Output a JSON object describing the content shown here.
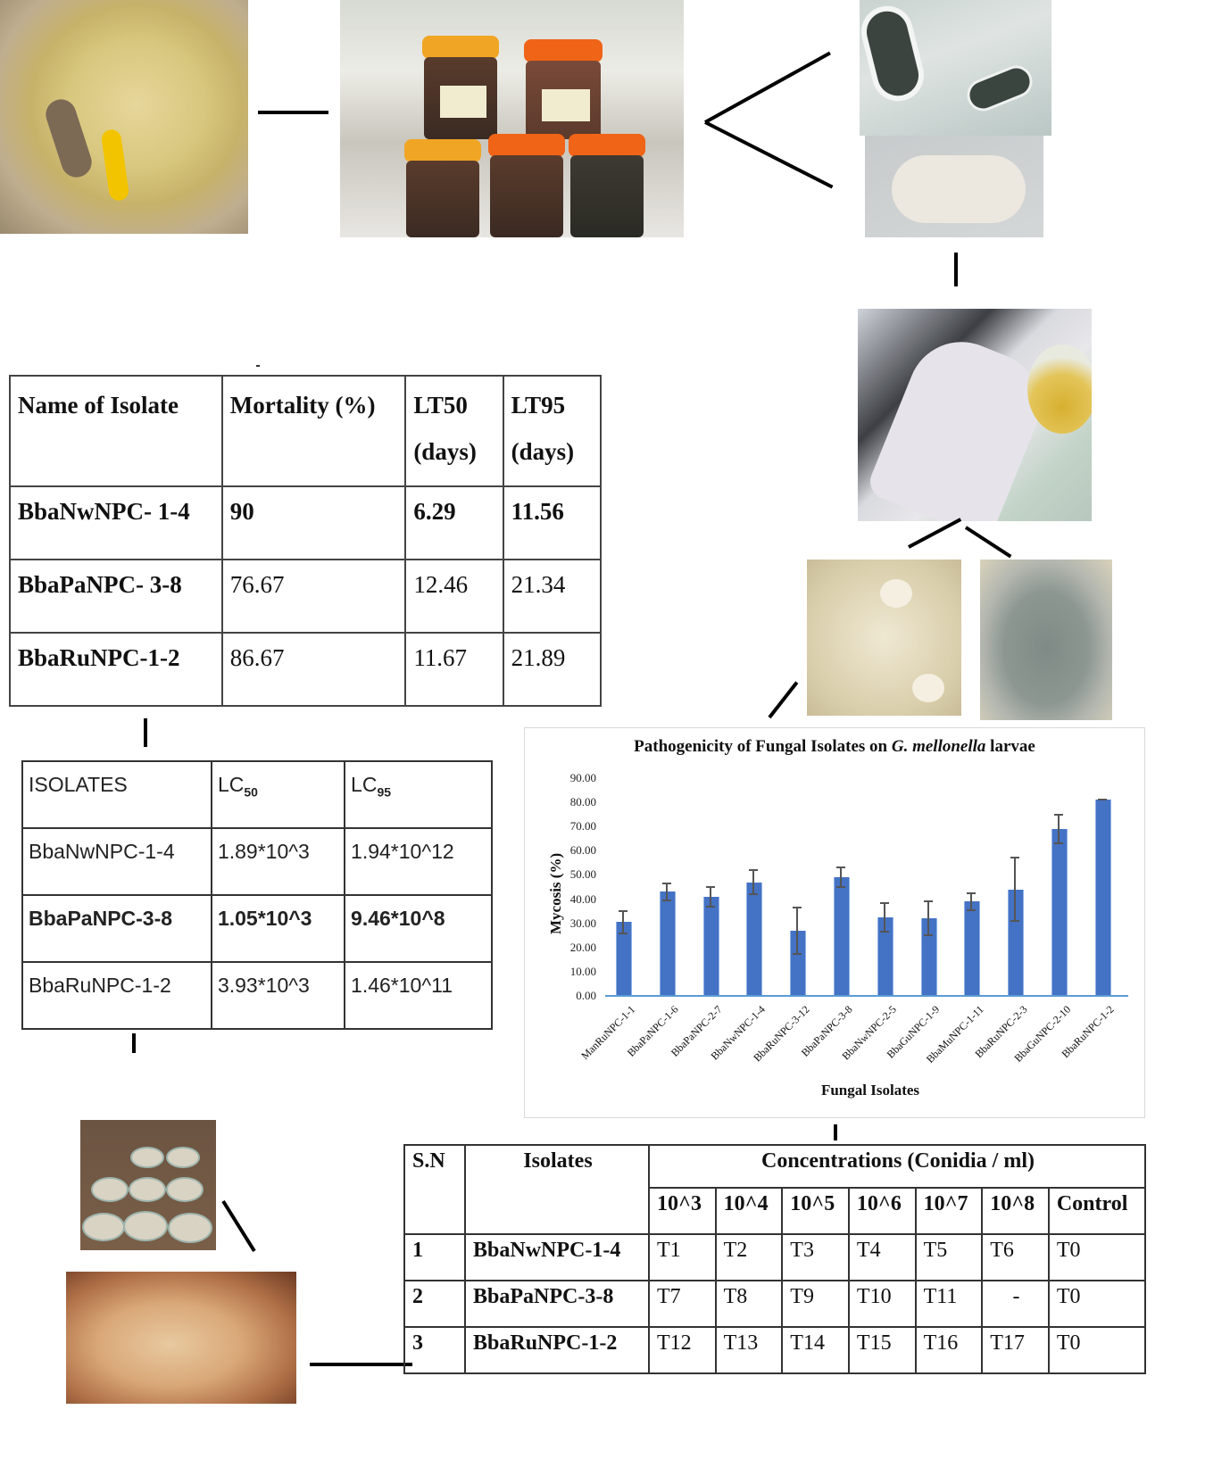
{
  "photos": {
    "larva_with_fungus": "Larva with yellow pupa on fungal growth",
    "soil_samples": "Soil sample jars",
    "mycosed_cadavers": "Mycosed cadavers",
    "fungal_covered_larva": "Fungus-covered larva",
    "isolation_lab": "Isolation in laboratory",
    "white_colonies": "White fungal colonies",
    "green_colonies": "Greenish fungal culture",
    "mass_culture_plates": "Mass culture plates",
    "maggot_bioassay": "Maggot bioassay"
  },
  "table_lt": {
    "headers": [
      "Name of Isolate",
      "Mortality (%)",
      "LT50",
      "LT95"
    ],
    "subheaders": [
      "",
      "",
      "(days)",
      "(days)"
    ],
    "rows": [
      {
        "isolate": "BbaNwNPC- 1-4",
        "mortality": "90",
        "lt50": "6.29",
        "lt95": "11.56",
        "bold": true
      },
      {
        "isolate": "BbaPaNPC- 3-8",
        "mortality": "76.67",
        "lt50": "12.46",
        "lt95": "21.34",
        "bold": false
      },
      {
        "isolate": "BbaRuNPC-1-2",
        "mortality": "86.67",
        "lt50": "11.67",
        "lt95": "21.89",
        "bold": false
      }
    ]
  },
  "table_lc": {
    "headers": [
      "ISOLATES",
      "LC",
      "LC"
    ],
    "header_subs": [
      "",
      "50",
      "95"
    ],
    "rows": [
      {
        "isolate": "BbaNwNPC-1-4",
        "lc50": "1.89*10^3",
        "lc95": "1.94*10^12",
        "bold": false
      },
      {
        "isolate": "BbaPaNPC-3-8",
        "lc50": "1.05*10^3",
        "lc95": "9.46*10^8",
        "bold": true
      },
      {
        "isolate": "BbaRuNPC-1-2",
        "lc50": "3.93*10^3",
        "lc95": "1.46*10^11",
        "bold": false
      }
    ]
  },
  "table_treat": {
    "headers": {
      "sn": "S.N",
      "isolates": "Isolates",
      "conc": "Concentrations (Conidia / ml)"
    },
    "conc_cols": [
      "10^3",
      "10^4",
      "10^5",
      "10^6",
      "10^7",
      "10^8",
      "Control"
    ],
    "rows": [
      {
        "sn": "1",
        "isolate": "BbaNwNPC-1-4",
        "cells": [
          "T1",
          "T2",
          "T3",
          "T4",
          "T5",
          "T6",
          "T0"
        ]
      },
      {
        "sn": "2",
        "isolate": "BbaPaNPC-3-8",
        "cells": [
          "T7",
          "T8",
          "T9",
          "T10",
          "T11",
          "-",
          "T0"
        ]
      },
      {
        "sn": "3",
        "isolate": "BbaRuNPC-1-2",
        "cells": [
          "T12",
          "T13",
          "T14",
          "T15",
          "T16",
          "T17",
          "T0"
        ]
      }
    ]
  },
  "chart": {
    "title_pre": "Pathogenicity of Fungal Isolates on ",
    "title_italic": "G. mellonella",
    "title_post": " larvae",
    "xlabel": "Fungal Isolates",
    "ylabel": "Mycosis (%)",
    "yticks": [
      "90.00",
      "80.00",
      "70.00",
      "60.00",
      "50.00",
      "40.00",
      "30.00",
      "20.00",
      "10.00",
      "0.00"
    ],
    "bar_color": "#4472c4"
  },
  "chart_data": {
    "type": "bar",
    "title": "Pathogenicity of Fungal Isolates on G. mellonella larvae",
    "xlabel": "Fungal Isolates",
    "ylabel": "Mycosis (%)",
    "ylim": [
      0,
      90
    ],
    "grid": false,
    "categories": [
      "ManRuNPC-1-1",
      "BbaPaNPC-1-6",
      "BbaPaNPC-2-7",
      "BbaNwNPC-1-4",
      "BbaRuNPC-3-12",
      "BbaPaNPC-3-8",
      "BbaNwNPC-2-5",
      "BbaGuNPC-1-9",
      "BbaMuNPC-1-11",
      "BbaRuNPC-2-3",
      "BbaGuNPC-2-10",
      "BbaRuNPC-1-2"
    ],
    "values": [
      30.5,
      43.0,
      41.0,
      47.0,
      27.0,
      49.0,
      32.5,
      32.0,
      39.0,
      44.0,
      69.0,
      81.0
    ],
    "error": [
      4.5,
      3.5,
      4.0,
      5.0,
      9.5,
      4.0,
      6.0,
      7.0,
      3.5,
      13.0,
      6.0,
      0.0
    ]
  }
}
